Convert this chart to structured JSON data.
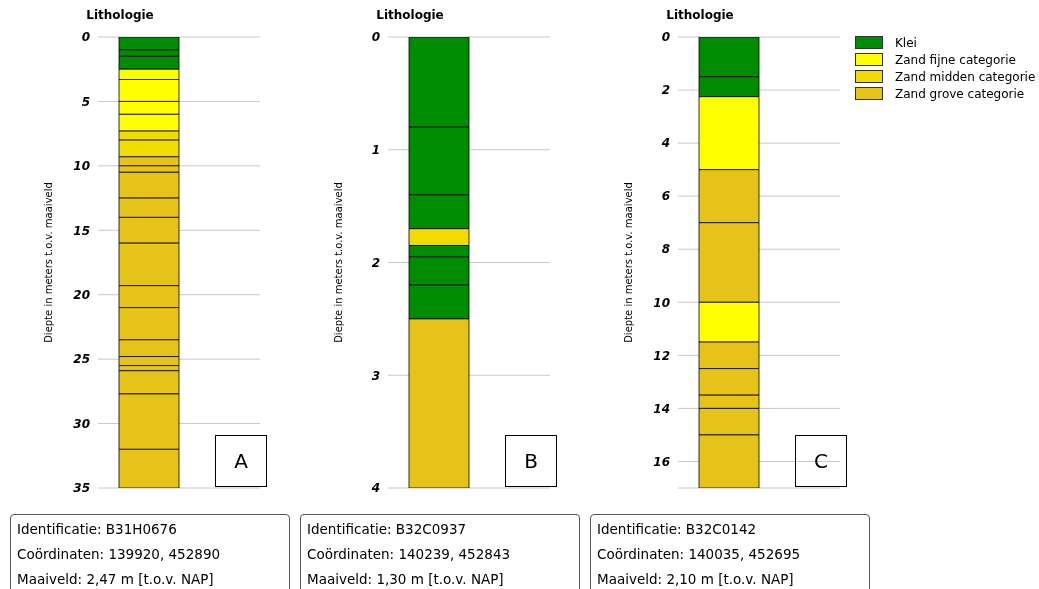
{
  "chart_data": [
    {
      "type": "bar",
      "stacked": true,
      "title": "Lithologie",
      "ylabel": "Diepte in meters t.o.v. maaiveld",
      "categories": [
        null
      ],
      "ylim": [
        35,
        0
      ],
      "yticks": [
        0,
        5,
        10,
        15,
        20,
        25,
        30,
        35
      ],
      "grid": "y",
      "legend": "right",
      "series": [
        {
          "name": "Klei",
          "color": "#008c00",
          "values": [
            1.0
          ]
        },
        {
          "color": "#008c00",
          "values": [
            0.5
          ]
        },
        {
          "color": "#008c00",
          "values": [
            1.0
          ]
        },
        {
          "name": "Zand fijne categorie",
          "color": "#ffff00",
          "values": [
            0.8
          ]
        },
        {
          "color": "#ffff00",
          "values": [
            1.7
          ]
        },
        {
          "color": "#ffff00",
          "values": [
            1.0
          ]
        },
        {
          "color": "#ffff00",
          "values": [
            1.3
          ]
        },
        {
          "name": "Zand midden categorie",
          "color": "#f0dc00",
          "values": [
            0.7
          ]
        },
        {
          "color": "#f0dc00",
          "values": [
            1.3
          ]
        },
        {
          "name": "Zand grove categorie",
          "color": "#e6c319",
          "values": [
            0.7
          ]
        },
        {
          "color": "#e6c319",
          "values": [
            0.5
          ]
        },
        {
          "color": "#e6c319",
          "values": [
            2.0
          ]
        },
        {
          "color": "#e6c319",
          "values": [
            1.5
          ]
        },
        {
          "color": "#e6c319",
          "values": [
            2.0
          ]
        },
        {
          "color": "#e6c319",
          "values": [
            3.3
          ]
        },
        {
          "color": "#e6c319",
          "values": [
            1.7
          ]
        },
        {
          "color": "#e6c319",
          "values": [
            2.5
          ]
        },
        {
          "color": "#e6c319",
          "values": [
            1.3
          ]
        },
        {
          "color": "#e6c319",
          "values": [
            0.7
          ]
        },
        {
          "color": "#e6c319",
          "values": [
            0.4
          ]
        },
        {
          "color": "#e6c319",
          "values": [
            1.8
          ]
        },
        {
          "color": "#e6c319",
          "values": [
            4.3
          ]
        },
        {
          "color": "#e6c319",
          "values": [
            3.0
          ]
        }
      ],
      "annotations": [
        "A",
        "Identificatie: B31H0676",
        "Coördinaten: 139920, 452890",
        "Maaiveld: 2,47 m [t.o.v. NAP]"
      ]
    },
    {
      "type": "bar",
      "stacked": true,
      "title": "Lithologie",
      "ylabel": "Diepte in meters t.o.v. maaiveld",
      "categories": [
        null
      ],
      "ylim": [
        4,
        0
      ],
      "yticks": [
        0,
        1,
        2,
        3,
        4
      ],
      "grid": "y",
      "series": [
        {
          "color": "#008c00",
          "values": [
            0.8
          ]
        },
        {
          "color": "#008c00",
          "values": [
            0.6
          ]
        },
        {
          "color": "#008c00",
          "values": [
            0.3
          ]
        },
        {
          "color": "#f0dc00",
          "values": [
            0.15
          ]
        },
        {
          "color": "#008c00",
          "values": [
            0.1
          ]
        },
        {
          "color": "#008c00",
          "values": [
            0.25
          ]
        },
        {
          "color": "#008c00",
          "values": [
            0.3
          ]
        },
        {
          "color": "#e6c319",
          "values": [
            1.5
          ]
        }
      ],
      "annotations": [
        "B",
        "Identificatie: B32C0937",
        "Coördinaten: 140239, 452843",
        "Maaiveld: 1,30 m [t.o.v. NAP]"
      ]
    },
    {
      "type": "bar",
      "stacked": true,
      "title": "Lithologie",
      "ylabel": "Diepte in meters t.o.v. maaiveld",
      "categories": [
        null
      ],
      "ylim": [
        17,
        0
      ],
      "yticks": [
        0,
        2,
        4,
        6,
        8,
        10,
        12,
        14,
        16
      ],
      "grid": "y",
      "series": [
        {
          "color": "#008c00",
          "values": [
            1.5
          ]
        },
        {
          "color": "#008c00",
          "values": [
            0.75
          ]
        },
        {
          "color": "#ffff00",
          "values": [
            2.75
          ]
        },
        {
          "color": "#e6c319",
          "values": [
            2.0
          ]
        },
        {
          "color": "#e6c319",
          "values": [
            3.0
          ]
        },
        {
          "color": "#ffff00",
          "values": [
            1.5
          ]
        },
        {
          "color": "#e6c319",
          "values": [
            1.0
          ]
        },
        {
          "color": "#e6c319",
          "values": [
            1.0
          ]
        },
        {
          "color": "#e6c319",
          "values": [
            0.5
          ]
        },
        {
          "color": "#e6c319",
          "values": [
            1.0
          ]
        },
        {
          "color": "#e6c319",
          "values": [
            2.0
          ]
        }
      ],
      "annotations": [
        "C",
        "Identificatie: B32C0142",
        "Coördinaten: 140035, 452695",
        "Maaiveld: 2,10 m [t.o.v. NAP]"
      ]
    }
  ]
}
